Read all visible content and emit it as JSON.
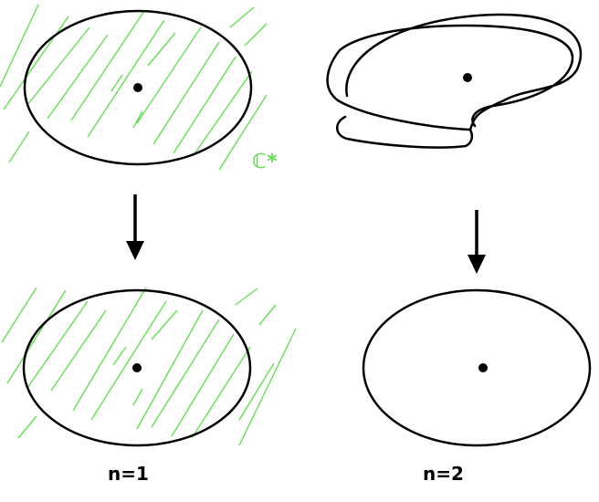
{
  "colors": {
    "hatch": "#66dd55",
    "ink": "#000000",
    "background": "#ffffff"
  },
  "labels": {
    "c_star": "ℂ*",
    "left_caption": "n=1",
    "right_caption": "n=2"
  }
}
